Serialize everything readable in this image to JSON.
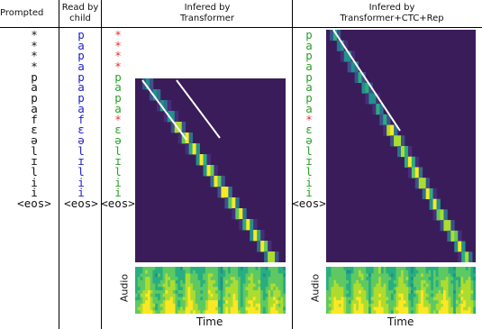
{
  "headers": {
    "prompted": "Prompted",
    "read_by_child_line1": "Read by",
    "read_by_child_line2": "child",
    "transformer_line1": "Infered by",
    "transformer_line2": "Transformer",
    "ctc_line1": "Infered by",
    "ctc_line2": "Transformer+CTC+Rep"
  },
  "prompted_tokens": [
    "*",
    "*",
    "*",
    "*",
    "p",
    "a",
    "p",
    "a",
    "f",
    "ɛ",
    "ə",
    "l",
    "ɪ",
    "l",
    "i",
    "i",
    "<eos>"
  ],
  "read_by_child_tokens": [
    "p",
    "a",
    "p",
    "a",
    "p",
    "a",
    "p",
    "a",
    "f",
    "ɛ",
    "ə",
    "l",
    "ɪ",
    "l",
    "i",
    "i",
    "<eos>"
  ],
  "transformer_tokens": [
    "*",
    "*",
    "*",
    "*",
    "p",
    "a",
    "p",
    "a",
    "*",
    "ɛ",
    "ə",
    "l",
    "ɪ",
    "l",
    "i",
    "i",
    "<eos>"
  ],
  "ctc_tokens": [
    "p",
    "a",
    "p",
    "a",
    "p",
    "a",
    "p",
    "a",
    "*",
    "ɛ",
    "ə",
    "l",
    "ɪ",
    "l",
    "i",
    "i",
    "<eos>"
  ],
  "colors": {
    "read_by_child": "#1f1fcc",
    "correct": "#2ca02c",
    "error": "#e03030",
    "neutral": "#111111",
    "heatmap_bg": "#3b1c5a"
  },
  "axis": {
    "audio_label": "Audio",
    "time_label": "Time"
  }
}
